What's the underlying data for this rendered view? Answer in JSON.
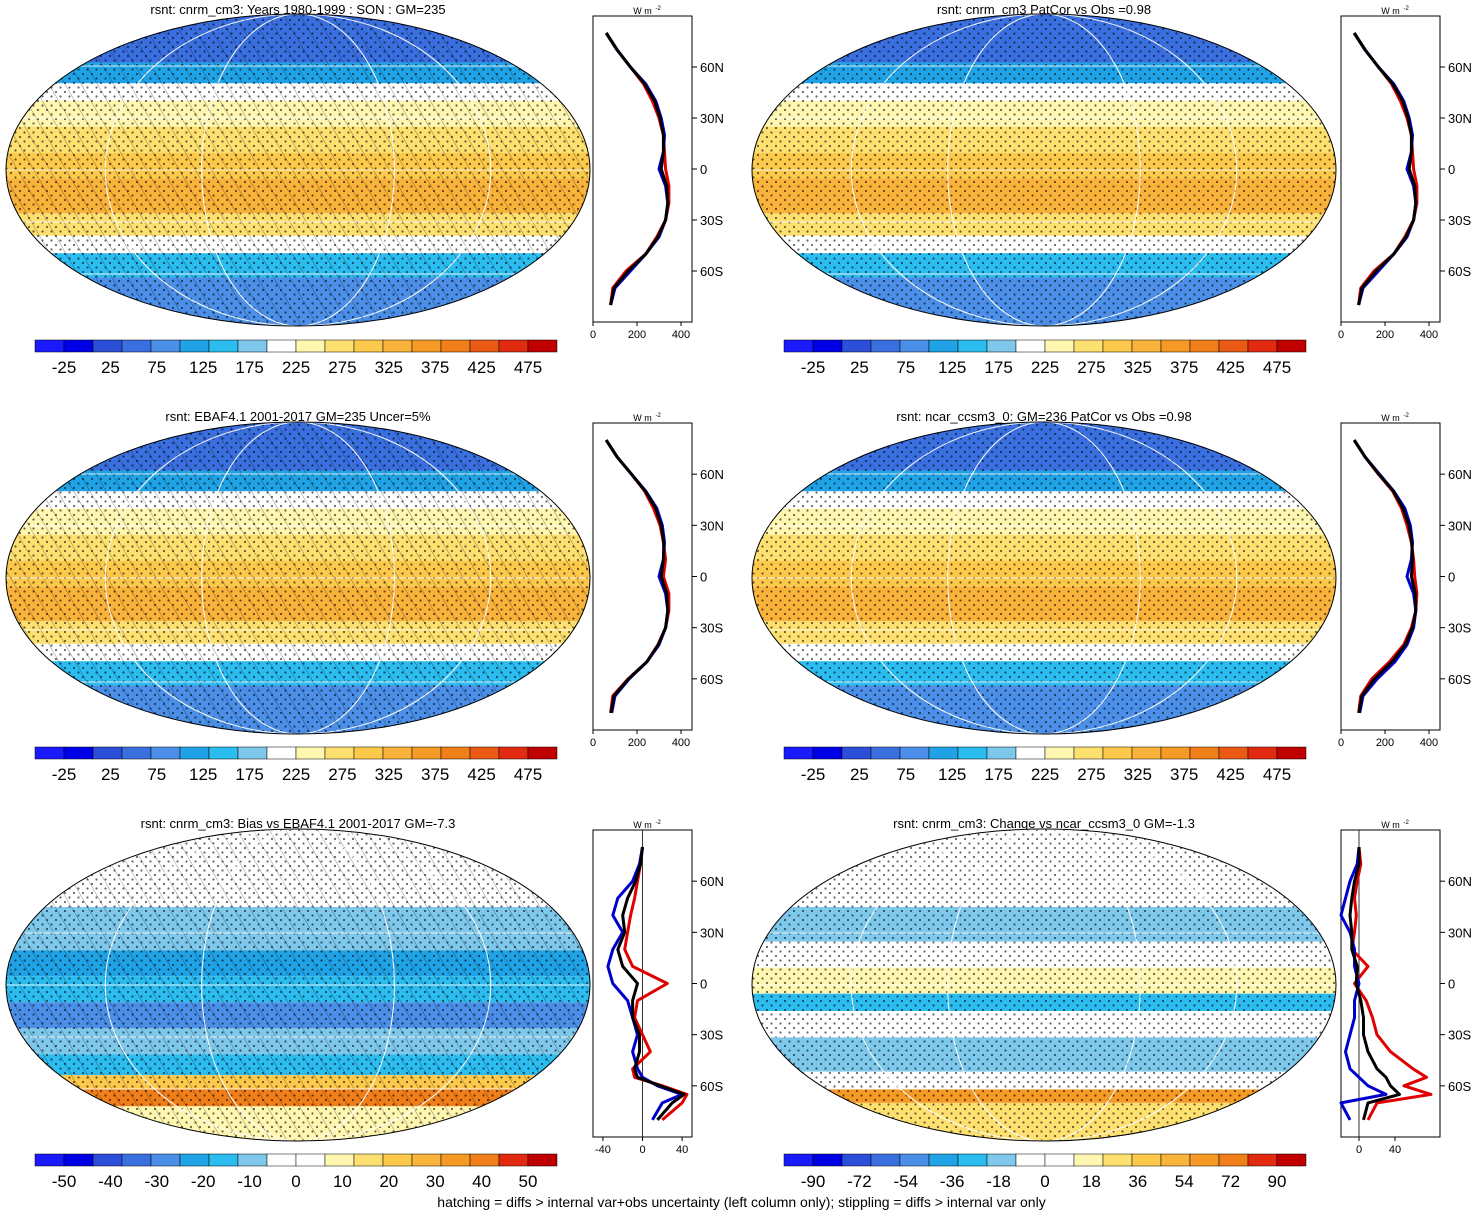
{
  "footnote": "hatching = diffs > internal var+obs uncertainty (left column only); stippling = diffs > internal var only",
  "units_label": "W m",
  "units_superscript": "-2",
  "colors": {
    "abs_scale": [
      "#1a1aff",
      "#0000e6",
      "#2b4fd8",
      "#3a6fe0",
      "#4b8fe8",
      "#1fa3e6",
      "#2bbcf0",
      "#7ec8ec",
      "#ffffff",
      "#fff6b0",
      "#fde070",
      "#fcc94a",
      "#f9b23a",
      "#f59a24",
      "#f07f1a",
      "#ea5a14",
      "#e12a10",
      "#c00000"
    ],
    "bias_scale": [
      "#1a1aff",
      "#0000e6",
      "#2b4fd8",
      "#3a6fe0",
      "#4b8fe8",
      "#1fa3e6",
      "#2bbcf0",
      "#7ec8ec",
      "#ffffff",
      "#ffffff",
      "#fff6b0",
      "#fde070",
      "#fcc94a",
      "#f9b23a",
      "#f59a24",
      "#f07f1a",
      "#e12a10",
      "#c00000"
    ],
    "model_line": "#e00000",
    "obs_line": "#0000cc",
    "ref_line": "#000000"
  },
  "panels": [
    {
      "title": "rsnt: cnrm_cm3: Years 1980-1999 : SON : GM=235",
      "kind": "abs",
      "hatch": true,
      "stipple": true,
      "colorbar_labels": [
        "-25",
        "25",
        "75",
        "125",
        "175",
        "225",
        "275",
        "325",
        "375",
        "425",
        "475"
      ],
      "profile_xticks": [
        "0",
        "200",
        "400"
      ]
    },
    {
      "title": "rsnt: cnrm_cm3 PatCor vs Obs =0.98",
      "kind": "abs",
      "hatch": false,
      "stipple": true,
      "colorbar_labels": [
        "-25",
        "25",
        "75",
        "125",
        "175",
        "225",
        "275",
        "325",
        "375",
        "425",
        "475"
      ],
      "profile_xticks": [
        "0",
        "200",
        "400"
      ]
    },
    {
      "title": "rsnt: EBAF4.1 2001-2017 GM=235 Uncer=5%",
      "kind": "abs",
      "hatch": true,
      "stipple": true,
      "colorbar_labels": [
        "-25",
        "25",
        "75",
        "125",
        "175",
        "225",
        "275",
        "325",
        "375",
        "425",
        "475"
      ],
      "profile_xticks": [
        "0",
        "200",
        "400"
      ]
    },
    {
      "title": "rsnt: ncar_ccsm3_0: GM=236 PatCor vs Obs =0.98",
      "kind": "abs",
      "hatch": false,
      "stipple": true,
      "colorbar_labels": [
        "-25",
        "25",
        "75",
        "125",
        "175",
        "225",
        "275",
        "325",
        "375",
        "425",
        "475"
      ],
      "profile_xticks": [
        "0",
        "200",
        "400"
      ]
    },
    {
      "title": "rsnt: cnrm_cm3: Bias vs EBAF4.1 2001-2017  GM=-7.3",
      "kind": "bias",
      "hatch": true,
      "stipple": true,
      "colorbar_labels": [
        "-50",
        "-40",
        "-30",
        "-20",
        "-10",
        "0",
        "10",
        "20",
        "30",
        "40",
        "50"
      ],
      "profile_xticks": [
        "-40",
        "0",
        "40"
      ]
    },
    {
      "title": "rsnt: cnrm_cm3: Change vs ncar_ccsm3_0 GM=-1.3",
      "kind": "change",
      "hatch": false,
      "stipple": true,
      "colorbar_labels": [
        "-90",
        "-72",
        "-54",
        "-36",
        "-18",
        "0",
        "18",
        "36",
        "54",
        "72",
        "90"
      ],
      "profile_xticks": [
        "0",
        "40"
      ]
    }
  ],
  "profile_yticks": [
    "60N",
    "30N",
    "0",
    "30S",
    "60S"
  ],
  "chart_data": [
    {
      "type": "heatmap",
      "title": "rsnt: cnrm_cm3: Years 1980-1999 : SON : GM=235",
      "colorbar": {
        "min": -50,
        "max": 500,
        "labels": [
          -25,
          25,
          75,
          125,
          175,
          225,
          275,
          325,
          375,
          425,
          475
        ]
      },
      "zonal_profile": {
        "type": "line",
        "y_latitude": [
          80,
          70,
          60,
          50,
          40,
          30,
          20,
          10,
          0,
          -10,
          -20,
          -30,
          -40,
          -50,
          -60,
          -70,
          -80
        ],
        "series": [
          {
            "color": "red",
            "values": [
              60,
              110,
              170,
              230,
              270,
              300,
              320,
              325,
              330,
              345,
              345,
              330,
              290,
              240,
              150,
              90,
              80
            ]
          },
          {
            "color": "blue",
            "values": [
              60,
              110,
              170,
              240,
              285,
              310,
              325,
              320,
              300,
              330,
              340,
              330,
              300,
              240,
              170,
              100,
              80
            ]
          },
          {
            "color": "black",
            "values": [
              60,
              110,
              170,
              235,
              280,
              305,
              320,
              320,
              310,
              335,
              340,
              330,
              295,
              240,
              160,
              95,
              80
            ]
          }
        ],
        "xlim": [
          0,
          450
        ]
      }
    },
    {
      "type": "heatmap",
      "title": "rsnt: cnrm_cm3 PatCor vs Obs =0.98",
      "colorbar": {
        "min": -50,
        "max": 500,
        "labels": [
          -25,
          25,
          75,
          125,
          175,
          225,
          275,
          325,
          375,
          425,
          475
        ]
      },
      "zonal_profile": {
        "type": "line",
        "y_latitude": [
          80,
          70,
          60,
          50,
          40,
          30,
          20,
          10,
          0,
          -10,
          -20,
          -30,
          -40,
          -50,
          -60,
          -70,
          -80
        ],
        "series": [
          {
            "color": "red",
            "values": [
              60,
              110,
              170,
              230,
              270,
              300,
              320,
              325,
              330,
              345,
              345,
              330,
              290,
              240,
              150,
              90,
              80
            ]
          },
          {
            "color": "blue",
            "values": [
              60,
              110,
              170,
              240,
              285,
              310,
              325,
              320,
              300,
              330,
              340,
              330,
              300,
              240,
              170,
              100,
              80
            ]
          },
          {
            "color": "black",
            "values": [
              60,
              110,
              170,
              235,
              280,
              305,
              320,
              320,
              310,
              335,
              340,
              330,
              295,
              240,
              160,
              95,
              80
            ]
          }
        ],
        "xlim": [
          0,
          450
        ]
      }
    },
    {
      "type": "heatmap",
      "title": "rsnt: EBAF4.1 2001-2017 GM=235 Uncer=5%",
      "colorbar": {
        "min": -50,
        "max": 500,
        "labels": [
          -25,
          25,
          75,
          125,
          175,
          225,
          275,
          325,
          375,
          425,
          475
        ]
      },
      "zonal_profile": {
        "type": "line",
        "y_latitude": [
          80,
          70,
          60,
          50,
          40,
          30,
          20,
          10,
          0,
          -10,
          -20,
          -30,
          -40,
          -50,
          -60,
          -70,
          -80
        ],
        "series": [
          {
            "color": "red",
            "values": [
              60,
              110,
              175,
              235,
              275,
              305,
              320,
              330,
              320,
              345,
              345,
              330,
              295,
              245,
              160,
              90,
              80
            ]
          },
          {
            "color": "blue",
            "values": [
              60,
              110,
              175,
              240,
              290,
              315,
              325,
              320,
              300,
              330,
              340,
              330,
              300,
              245,
              165,
              100,
              85
            ]
          },
          {
            "color": "black",
            "values": [
              60,
              110,
              175,
              238,
              285,
              310,
              322,
              320,
              310,
              335,
              340,
              330,
              297,
              245,
              162,
              95,
              82
            ]
          }
        ],
        "xlim": [
          0,
          450
        ]
      }
    },
    {
      "type": "heatmap",
      "title": "rsnt: ncar_ccsm3_0: GM=236 PatCor vs Obs =0.98",
      "colorbar": {
        "min": -50,
        "max": 500,
        "labels": [
          -25,
          25,
          75,
          125,
          175,
          225,
          275,
          325,
          375,
          425,
          475
        ]
      },
      "zonal_profile": {
        "type": "line",
        "y_latitude": [
          80,
          70,
          60,
          50,
          40,
          30,
          20,
          10,
          0,
          -10,
          -20,
          -30,
          -40,
          -50,
          -60,
          -70,
          -80
        ],
        "series": [
          {
            "color": "red",
            "values": [
              60,
              110,
              170,
              235,
              275,
              300,
              320,
              330,
              335,
              345,
              340,
              320,
              285,
              220,
              140,
              90,
              80
            ]
          },
          {
            "color": "blue",
            "values": [
              60,
              110,
              175,
              240,
              290,
              315,
              325,
              320,
              300,
              330,
              340,
              330,
              300,
              245,
              165,
              100,
              85
            ]
          },
          {
            "color": "black",
            "values": [
              60,
              110,
              172,
              238,
              282,
              308,
              322,
              325,
              320,
              338,
              340,
              325,
              292,
              232,
              152,
              95,
              82
            ]
          }
        ],
        "xlim": [
          0,
          450
        ]
      }
    },
    {
      "type": "heatmap",
      "title": "rsnt: cnrm_cm3: Bias vs EBAF4.1 2001-2017  GM=-7.3",
      "colorbar": {
        "min": -55,
        "max": 55,
        "labels": [
          -50,
          -40,
          -30,
          -20,
          -10,
          0,
          10,
          20,
          30,
          40,
          50
        ]
      },
      "zonal_profile": {
        "type": "line",
        "y_latitude": [
          80,
          70,
          60,
          50,
          40,
          30,
          20,
          10,
          0,
          -10,
          -20,
          -30,
          -40,
          -50,
          -55,
          -60,
          -65,
          -70,
          -80
        ],
        "series": [
          {
            "color": "red",
            "values": [
              0,
              -2,
              -5,
              -8,
              -12,
              -15,
              -18,
              -10,
              25,
              -5,
              -8,
              0,
              8,
              -10,
              -8,
              20,
              45,
              40,
              20
            ]
          },
          {
            "color": "blue",
            "values": [
              0,
              -3,
              -10,
              -25,
              -30,
              -20,
              -30,
              -35,
              -30,
              -15,
              -10,
              -5,
              -10,
              -5,
              0,
              15,
              40,
              20,
              10
            ]
          },
          {
            "color": "black",
            "values": [
              0,
              -2,
              -7,
              -15,
              -20,
              -18,
              -25,
              -20,
              -5,
              -10,
              -10,
              -3,
              -3,
              -8,
              -5,
              18,
              42,
              30,
              15
            ]
          }
        ],
        "xlim": [
          -50,
          50
        ]
      }
    },
    {
      "type": "heatmap",
      "title": "rsnt: cnrm_cm3: Change vs ncar_ccsm3_0 GM=-1.3",
      "colorbar": {
        "min": -100,
        "max": 100,
        "labels": [
          -90,
          -72,
          -54,
          -36,
          -18,
          0,
          18,
          36,
          54,
          72,
          90
        ]
      },
      "zonal_profile": {
        "type": "line",
        "y_latitude": [
          80,
          70,
          60,
          50,
          40,
          30,
          20,
          10,
          0,
          -10,
          -20,
          -30,
          -40,
          -50,
          -55,
          -60,
          -65,
          -70,
          -80
        ],
        "series": [
          {
            "color": "red",
            "values": [
              0,
              2,
              -2,
              -5,
              -3,
              -5,
              -8,
              10,
              -5,
              8,
              15,
              20,
              35,
              60,
              75,
              50,
              80,
              20,
              10
            ]
          },
          {
            "color": "blue",
            "values": [
              0,
              -2,
              -10,
              -15,
              -20,
              -10,
              -5,
              -5,
              0,
              -5,
              -5,
              -10,
              -15,
              -10,
              0,
              10,
              30,
              -20,
              -10
            ]
          },
          {
            "color": "black",
            "values": [
              0,
              0,
              -5,
              -8,
              -10,
              -8,
              -8,
              -2,
              -3,
              2,
              5,
              5,
              10,
              20,
              30,
              35,
              45,
              10,
              5
            ]
          }
        ],
        "xlim": [
          -20,
          90
        ]
      }
    }
  ]
}
